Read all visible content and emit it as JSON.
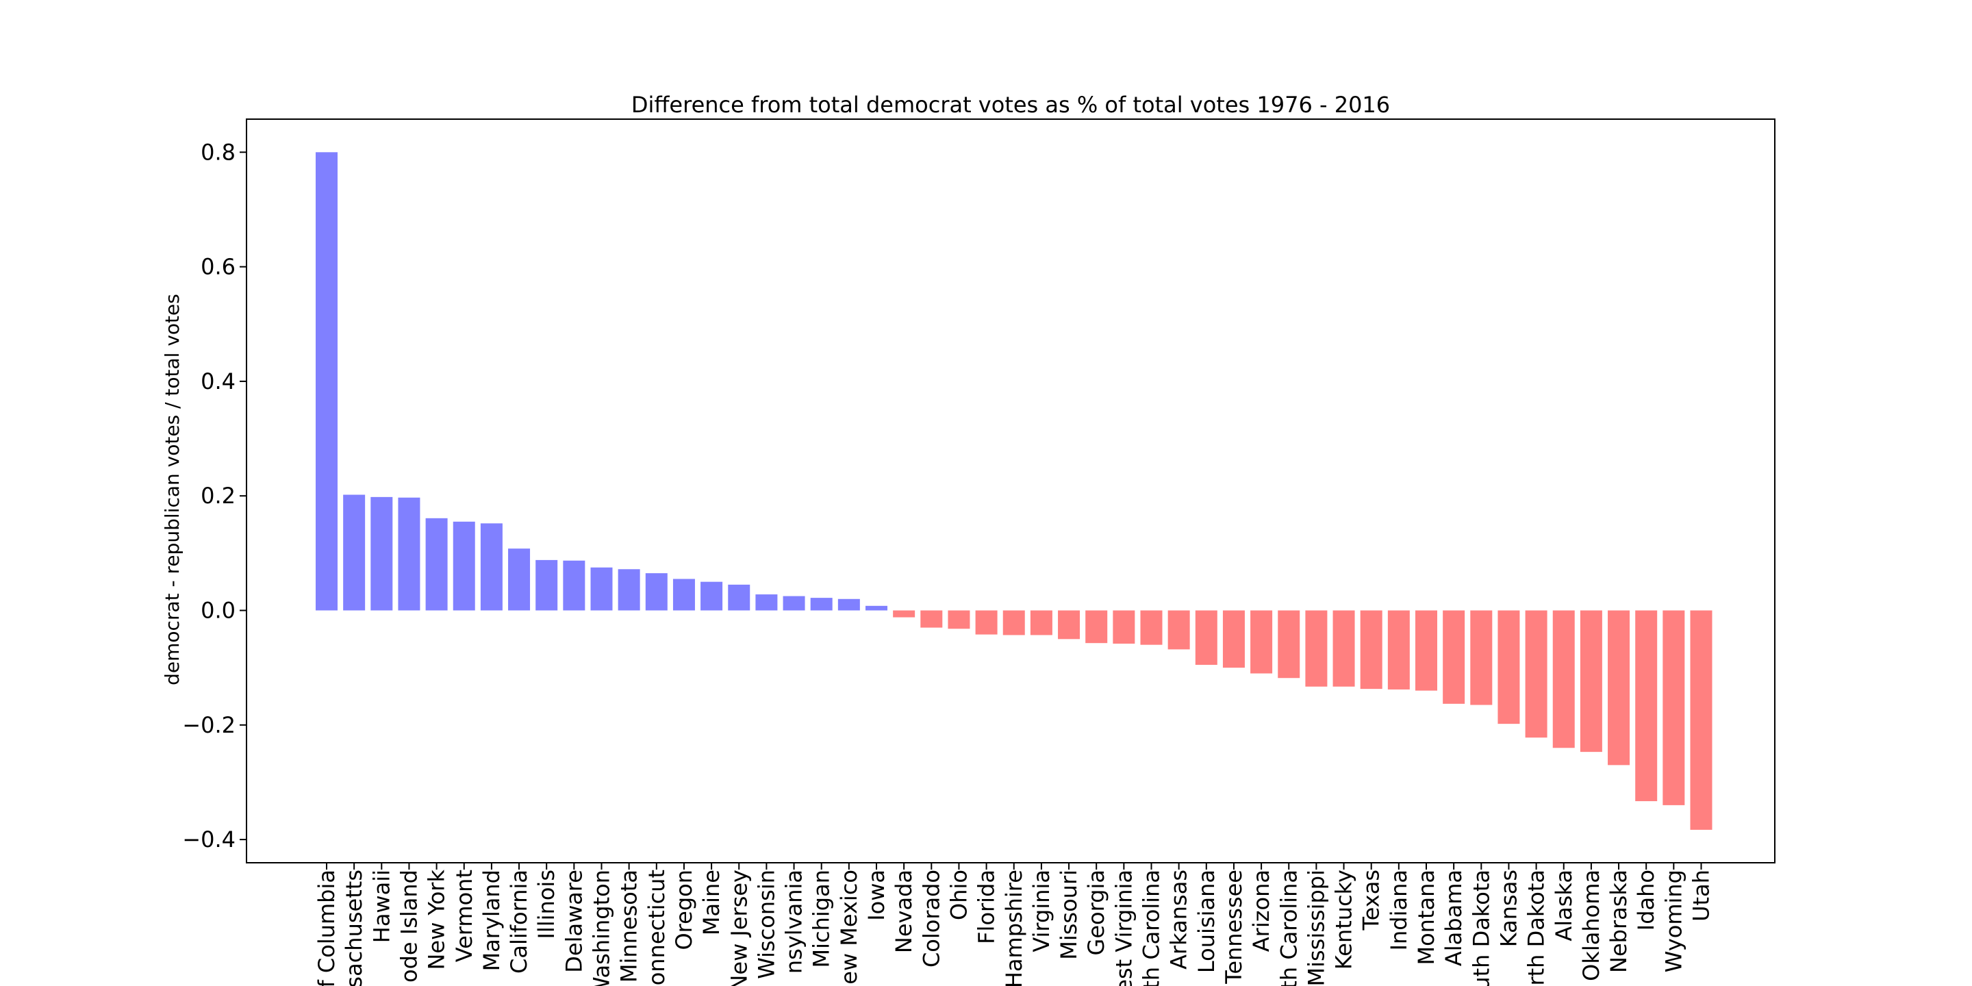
{
  "chart_data": {
    "type": "bar",
    "title": "Difference from total democrat votes as % of total votes 1976 - 2016",
    "xlabel": "",
    "ylabel": "democrat - republican votes / total votes",
    "ylim": [
      -0.44,
      0.86
    ],
    "yticks": [
      0.8,
      0.6,
      0.4,
      0.2,
      0.0,
      -0.2,
      -0.4
    ],
    "ytick_labels": [
      "0.8",
      "0.6",
      "0.4",
      "0.2",
      "0.0",
      "−0.2",
      "−0.4"
    ],
    "grid": false,
    "legend": "none",
    "colors": {
      "positive": "#8080ff",
      "negative": "#ff8080",
      "axis": "#000000"
    },
    "categories": [
      "f Columbia",
      "ssachusetts",
      "Hawaii",
      "ode Island",
      "New York",
      "Vermont",
      "Maryland",
      "California",
      "Illinois",
      "Delaware",
      "Washington",
      "Minnesota",
      "onnecticut",
      "Oregon",
      "Maine",
      "New Jersey",
      "Wisconsin",
      "nsylvania",
      "Michigan",
      "ew Mexico",
      "Iowa",
      "Nevada",
      "Colorado",
      "Ohio",
      "Florida",
      "Hampshire",
      "Virginia",
      "Missouri",
      "Georgia",
      "est Virginia",
      "th Carolina",
      "Arkansas",
      "Louisiana",
      "Tennessee",
      "Arizona",
      "th Carolina",
      "Mississippi",
      "Kentucky",
      "Texas",
      "Indiana",
      "Montana",
      "Alabama",
      "uth Dakota",
      "Kansas",
      "orth Dakota",
      "Alaska",
      "Oklahoma",
      "Nebraska",
      "Idaho",
      "Wyoming",
      "Utah"
    ],
    "values": [
      0.8,
      0.202,
      0.198,
      0.197,
      0.161,
      0.155,
      0.152,
      0.108,
      0.088,
      0.087,
      0.075,
      0.072,
      0.065,
      0.055,
      0.05,
      0.045,
      0.028,
      0.025,
      0.022,
      0.02,
      0.008,
      -0.012,
      -0.03,
      -0.032,
      -0.042,
      -0.043,
      -0.043,
      -0.05,
      -0.057,
      -0.058,
      -0.06,
      -0.068,
      -0.095,
      -0.1,
      -0.11,
      -0.118,
      -0.133,
      -0.133,
      -0.137,
      -0.138,
      -0.14,
      -0.163,
      -0.165,
      -0.198,
      -0.222,
      -0.24,
      -0.247,
      -0.27,
      -0.333,
      -0.34,
      -0.383
    ]
  }
}
